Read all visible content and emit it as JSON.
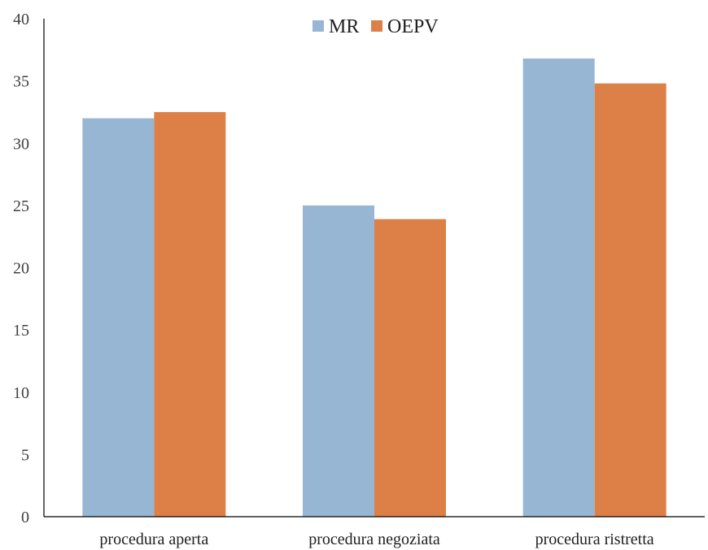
{
  "chart_data": {
    "type": "bar",
    "categories": [
      "procedura aperta",
      "procedura negoziata",
      "procedura ristretta"
    ],
    "series": [
      {
        "name": "MR",
        "values": [
          32.0,
          25.0,
          36.8
        ],
        "color": "#97b6d4"
      },
      {
        "name": "OEPV",
        "values": [
          32.5,
          23.9,
          34.8
        ],
        "color": "#dd8047"
      }
    ],
    "title": "",
    "xlabel": "",
    "ylabel": "",
    "ylim": [
      0,
      40
    ],
    "yticks": [
      0,
      5,
      10,
      15,
      20,
      25,
      30,
      35,
      40
    ],
    "grid": false,
    "legend": "top-center"
  }
}
